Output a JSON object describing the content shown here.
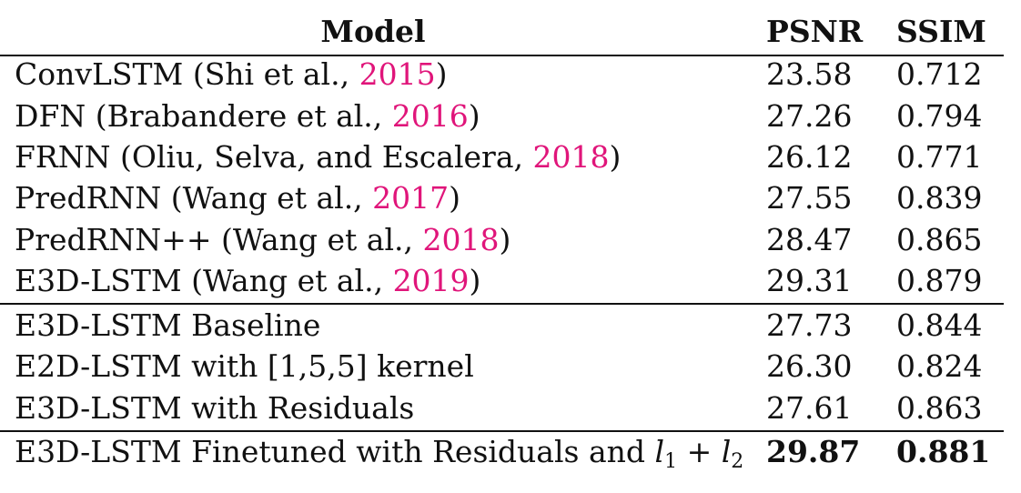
{
  "header": {
    "model": "Model",
    "psnr": "PSNR",
    "ssim": "SSIM"
  },
  "group1": [
    {
      "model": "ConvLSTM (Shi et al., ",
      "cite": "2015",
      "tail": ")",
      "psnr": "23.58",
      "ssim": "0.712"
    },
    {
      "model": "DFN (Brabandere et al., ",
      "cite": "2016",
      "tail": ")",
      "psnr": "27.26",
      "ssim": "0.794"
    },
    {
      "model": "FRNN (Oliu, Selva, and Escalera, ",
      "cite": "2018",
      "tail": ")",
      "psnr": "26.12",
      "ssim": "0.771"
    },
    {
      "model": "PredRNN (Wang et al., ",
      "cite": "2017",
      "tail": ")",
      "psnr": "27.55",
      "ssim": "0.839"
    },
    {
      "model": "PredRNN++ (Wang et al., ",
      "cite": "2018",
      "tail": ")",
      "psnr": "28.47",
      "ssim": "0.865"
    },
    {
      "model": "E3D-LSTM (Wang et al., ",
      "cite": "2019",
      "tail": ")",
      "psnr": "29.31",
      "ssim": "0.879"
    }
  ],
  "group2": [
    {
      "model": "E3D-LSTM Baseline",
      "psnr": "27.73",
      "ssim": "0.844"
    },
    {
      "model": "E2D-LSTM with [1,5,5] kernel",
      "psnr": "26.30",
      "ssim": "0.824"
    },
    {
      "model": "E3D-LSTM with Residuals",
      "psnr": "27.61",
      "ssim": "0.863"
    }
  ],
  "final": {
    "model": "E3D-LSTM Finetuned with Residuals and ",
    "l": "l",
    "sub1": "1",
    "plus": " + ",
    "sub2": "2",
    "psnr": "29.87",
    "ssim": "0.881"
  }
}
